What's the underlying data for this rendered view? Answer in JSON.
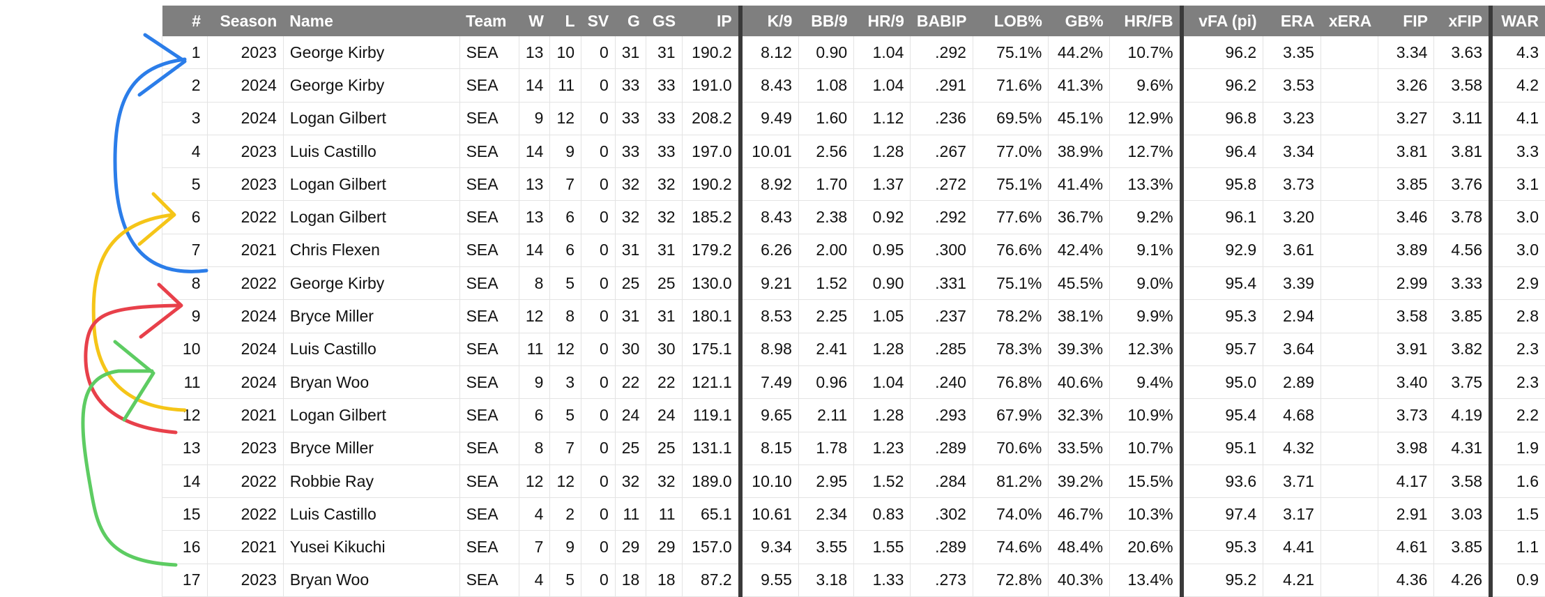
{
  "columns": [
    "#",
    "Season",
    "Name",
    "Team",
    "W",
    "L",
    "SV",
    "G",
    "GS",
    "IP",
    "K/9",
    "BB/9",
    "HR/9",
    "BABIP",
    "LOB%",
    "GB%",
    "HR/FB",
    "vFA (pi)",
    "ERA",
    "xERA",
    "FIP",
    "xFIP",
    "WAR"
  ],
  "rows": [
    [
      "1",
      "2023",
      "George Kirby",
      "SEA",
      "13",
      "10",
      "0",
      "31",
      "31",
      "190.2",
      "8.12",
      "0.90",
      "1.04",
      ".292",
      "75.1%",
      "44.2%",
      "10.7%",
      "96.2",
      "3.35",
      "",
      "3.34",
      "3.63",
      "4.3"
    ],
    [
      "2",
      "2024",
      "George Kirby",
      "SEA",
      "14",
      "11",
      "0",
      "33",
      "33",
      "191.0",
      "8.43",
      "1.08",
      "1.04",
      ".291",
      "71.6%",
      "41.3%",
      "9.6%",
      "96.2",
      "3.53",
      "",
      "3.26",
      "3.58",
      "4.2"
    ],
    [
      "3",
      "2024",
      "Logan Gilbert",
      "SEA",
      "9",
      "12",
      "0",
      "33",
      "33",
      "208.2",
      "9.49",
      "1.60",
      "1.12",
      ".236",
      "69.5%",
      "45.1%",
      "12.9%",
      "96.8",
      "3.23",
      "",
      "3.27",
      "3.11",
      "4.1"
    ],
    [
      "4",
      "2023",
      "Luis Castillo",
      "SEA",
      "14",
      "9",
      "0",
      "33",
      "33",
      "197.0",
      "10.01",
      "2.56",
      "1.28",
      ".267",
      "77.0%",
      "38.9%",
      "12.7%",
      "96.4",
      "3.34",
      "",
      "3.81",
      "3.81",
      "3.3"
    ],
    [
      "5",
      "2023",
      "Logan Gilbert",
      "SEA",
      "13",
      "7",
      "0",
      "32",
      "32",
      "190.2",
      "8.92",
      "1.70",
      "1.37",
      ".272",
      "75.1%",
      "41.4%",
      "13.3%",
      "95.8",
      "3.73",
      "",
      "3.85",
      "3.76",
      "3.1"
    ],
    [
      "6",
      "2022",
      "Logan Gilbert",
      "SEA",
      "13",
      "6",
      "0",
      "32",
      "32",
      "185.2",
      "8.43",
      "2.38",
      "0.92",
      ".292",
      "77.6%",
      "36.7%",
      "9.2%",
      "96.1",
      "3.20",
      "",
      "3.46",
      "3.78",
      "3.0"
    ],
    [
      "7",
      "2021",
      "Chris Flexen",
      "SEA",
      "14",
      "6",
      "0",
      "31",
      "31",
      "179.2",
      "6.26",
      "2.00",
      "0.95",
      ".300",
      "76.6%",
      "42.4%",
      "9.1%",
      "92.9",
      "3.61",
      "",
      "3.89",
      "4.56",
      "3.0"
    ],
    [
      "8",
      "2022",
      "George Kirby",
      "SEA",
      "8",
      "5",
      "0",
      "25",
      "25",
      "130.0",
      "9.21",
      "1.52",
      "0.90",
      ".331",
      "75.1%",
      "45.5%",
      "9.0%",
      "95.4",
      "3.39",
      "",
      "2.99",
      "3.33",
      "2.9"
    ],
    [
      "9",
      "2024",
      "Bryce Miller",
      "SEA",
      "12",
      "8",
      "0",
      "31",
      "31",
      "180.1",
      "8.53",
      "2.25",
      "1.05",
      ".237",
      "78.2%",
      "38.1%",
      "9.9%",
      "95.3",
      "2.94",
      "",
      "3.58",
      "3.85",
      "2.8"
    ],
    [
      "10",
      "2024",
      "Luis Castillo",
      "SEA",
      "11",
      "12",
      "0",
      "30",
      "30",
      "175.1",
      "8.98",
      "2.41",
      "1.28",
      ".285",
      "78.3%",
      "39.3%",
      "12.3%",
      "95.7",
      "3.64",
      "",
      "3.91",
      "3.82",
      "2.3"
    ],
    [
      "11",
      "2024",
      "Bryan Woo",
      "SEA",
      "9",
      "3",
      "0",
      "22",
      "22",
      "121.1",
      "7.49",
      "0.96",
      "1.04",
      ".240",
      "76.8%",
      "40.6%",
      "9.4%",
      "95.0",
      "2.89",
      "",
      "3.40",
      "3.75",
      "2.3"
    ],
    [
      "12",
      "2021",
      "Logan Gilbert",
      "SEA",
      "6",
      "5",
      "0",
      "24",
      "24",
      "119.1",
      "9.65",
      "2.11",
      "1.28",
      ".293",
      "67.9%",
      "32.3%",
      "10.9%",
      "95.4",
      "4.68",
      "",
      "3.73",
      "4.19",
      "2.2"
    ],
    [
      "13",
      "2023",
      "Bryce Miller",
      "SEA",
      "8",
      "7",
      "0",
      "25",
      "25",
      "131.1",
      "8.15",
      "1.78",
      "1.23",
      ".289",
      "70.6%",
      "33.5%",
      "10.7%",
      "95.1",
      "4.32",
      "",
      "3.98",
      "4.31",
      "1.9"
    ],
    [
      "14",
      "2022",
      "Robbie Ray",
      "SEA",
      "12",
      "12",
      "0",
      "32",
      "32",
      "189.0",
      "10.10",
      "2.95",
      "1.52",
      ".284",
      "81.2%",
      "39.2%",
      "15.5%",
      "93.6",
      "3.71",
      "",
      "4.17",
      "3.58",
      "1.6"
    ],
    [
      "15",
      "2022",
      "Luis Castillo",
      "SEA",
      "4",
      "2",
      "0",
      "11",
      "11",
      "65.1",
      "10.61",
      "2.34",
      "0.83",
      ".302",
      "74.0%",
      "46.7%",
      "10.3%",
      "97.4",
      "3.17",
      "",
      "2.91",
      "3.03",
      "1.5"
    ],
    [
      "16",
      "2021",
      "Yusei Kikuchi",
      "SEA",
      "7",
      "9",
      "0",
      "29",
      "29",
      "157.0",
      "9.34",
      "3.55",
      "1.55",
      ".289",
      "74.6%",
      "48.4%",
      "20.6%",
      "95.3",
      "4.41",
      "",
      "4.61",
      "3.85",
      "1.1"
    ],
    [
      "17",
      "2023",
      "Bryan Woo",
      "SEA",
      "4",
      "5",
      "0",
      "18",
      "18",
      "87.2",
      "9.55",
      "3.18",
      "1.33",
      ".273",
      "72.8%",
      "40.3%",
      "13.4%",
      "95.2",
      "4.21",
      "",
      "4.36",
      "4.26",
      "0.9"
    ]
  ],
  "annotation_colors": {
    "blue": "#2b7de9",
    "yellow": "#f5c518",
    "red": "#e8404a",
    "green": "#5dcc62"
  }
}
